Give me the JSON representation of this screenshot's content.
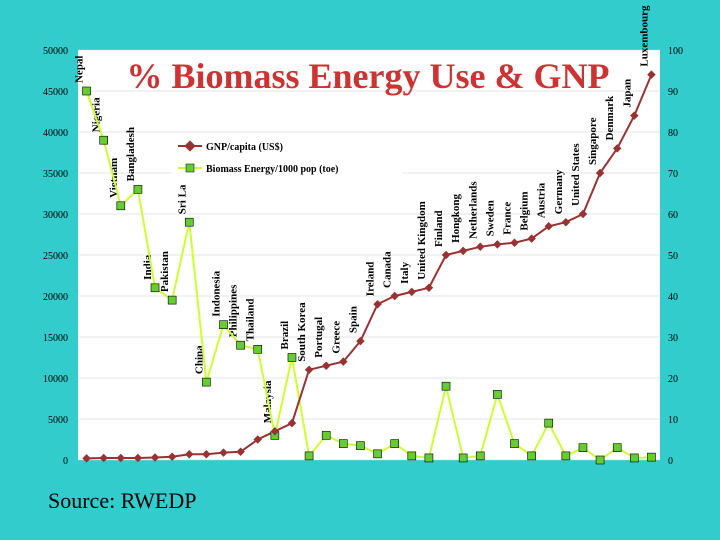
{
  "source": "Source: RWEDP",
  "colors": {
    "background": "#33cccc",
    "plot_area": "#ffffff",
    "gnp_line": "#993333",
    "biomass_line": "#ccff33",
    "biomass_marker": "#66cc33",
    "title": "#cc3333"
  },
  "chart_data": {
    "type": "line",
    "title": "% Biomass Energy Use & GNP",
    "categories": [
      "Nepal",
      "Nigeria",
      "Vietnam",
      "Bangladesh",
      "India",
      "Pakistan",
      "Sri Lanka",
      "China",
      "Indonesia",
      "Philippines",
      "Thailand",
      "Malaysia",
      "Brazil",
      "South Korea",
      "Portugal",
      "Greece",
      "Spain",
      "Ireland",
      "Canada",
      "Italy",
      "United Kingdom",
      "Finland",
      "Hongkong",
      "Netherlands",
      "Sweden",
      "France",
      "Belgium",
      "Austria",
      "Germany",
      "United States",
      "Singapore",
      "Denmark",
      "Japan",
      "Luxembourg"
    ],
    "y_left": {
      "ticks": [
        "0",
        "5000",
        "10000",
        "15000",
        "20000",
        "25000",
        "30000",
        "35000",
        "40000",
        "45000",
        "50000"
      ],
      "range": [
        0,
        50000
      ]
    },
    "y_right": {
      "ticks": [
        "0",
        "10",
        "20",
        "30",
        "40",
        "50",
        "60",
        "70",
        "80",
        "90",
        "100"
      ],
      "range": [
        0,
        100
      ]
    },
    "legend_position": "top-center",
    "series": [
      {
        "name": "GNP/capita (US$)",
        "axis": "left",
        "marker": "diamond",
        "values": [
          200,
          250,
          250,
          250,
          300,
          400,
          700,
          700,
          900,
          1000,
          2500,
          3500,
          4500,
          11000,
          11500,
          12000,
          14500,
          19000,
          20000,
          20500,
          21000,
          25000,
          25500,
          26000,
          26300,
          26500,
          27000,
          28500,
          29000,
          30000,
          35000,
          38000,
          42000,
          47000
        ]
      },
      {
        "name": "Biomass Energy/1000 pop (toe)",
        "axis": "right",
        "marker": "square",
        "values": [
          90,
          78,
          62,
          66,
          42,
          39,
          58,
          19,
          33,
          28,
          27,
          6,
          25,
          1,
          6,
          4,
          3.5,
          1.5,
          4,
          1,
          0.5,
          18,
          0.5,
          1,
          16,
          4,
          1,
          9,
          1,
          3,
          0,
          3,
          0.5,
          0.7
        ]
      }
    ]
  }
}
